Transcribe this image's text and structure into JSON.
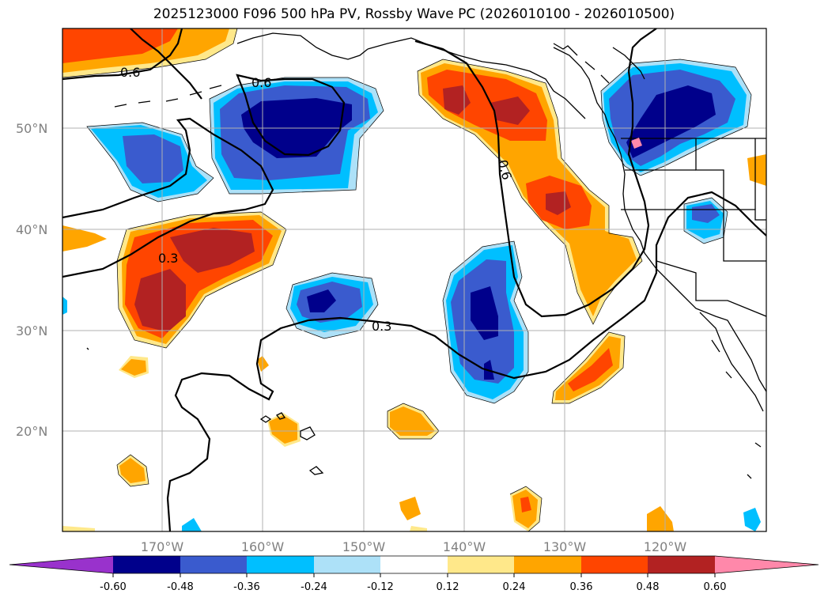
{
  "title": "2025123000 F096 500 hPa PV, Rossby Wave PC (2026010100 - 2026010500)",
  "lat_labels": [
    "50°N",
    "40°N",
    "30°N",
    "20°N"
  ],
  "lon_labels": [
    "170°W",
    "160°W",
    "150°W",
    "140°W",
    "130°W",
    "120°W"
  ],
  "contour_labels": [
    "0.6",
    "0.6",
    "0.6",
    "0.3",
    "0.3"
  ],
  "colorbar": {
    "labels": [
      "-0.60",
      "-0.48",
      "-0.36",
      "-0.24",
      "-0.12",
      "0.12",
      "0.24",
      "0.36",
      "0.48",
      "0.60"
    ],
    "colors": [
      "#9932CC",
      "#00008B",
      "#3A5BCE",
      "#00BFFF",
      "#ADE1F8",
      "#FFFFFF",
      "#FFE88A",
      "#FFA500",
      "#FF4500",
      "#B22222",
      "#FF88AA"
    ]
  },
  "colors": {
    "dark_navy": "#00008B",
    "royal_blue": "#3A5BCE",
    "sky_blue": "#00BFFF",
    "pale_blue": "#ADE1F8",
    "pale_yellow": "#FFE88A",
    "orange": "#FFA500",
    "red_orange": "#FF4500",
    "dark_red": "#B22222"
  }
}
